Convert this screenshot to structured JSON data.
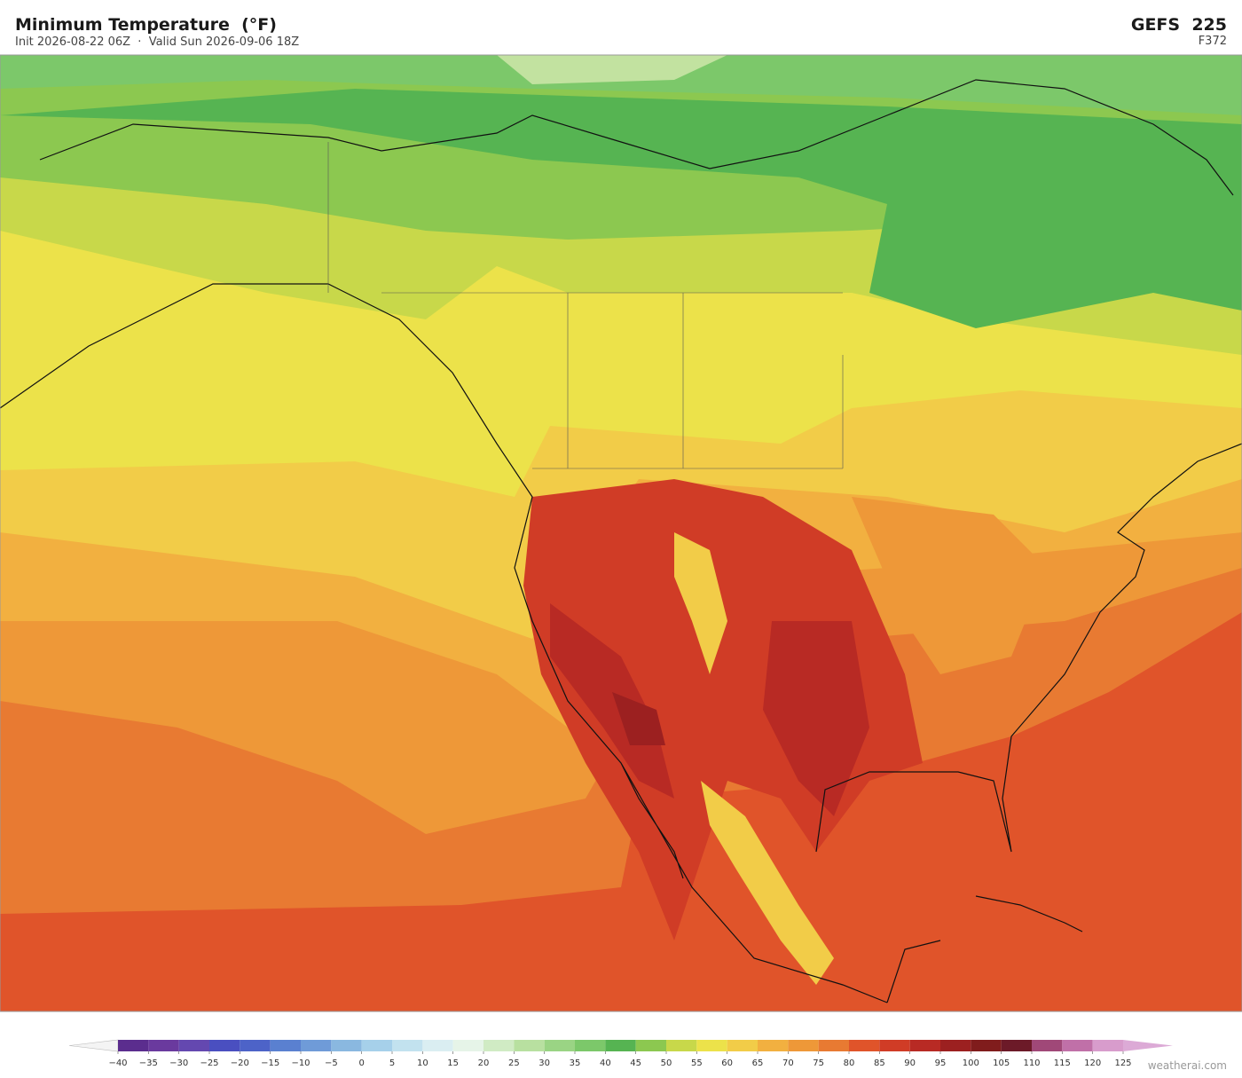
{
  "header": {
    "title": "Minimum Temperature  (°F)",
    "subtitle": "Init 2026-08-22 06Z  ·  Valid Sun 2026-09-06 18Z",
    "model": "GEFS  225",
    "forecast_hour": "F372"
  },
  "colorbar": {
    "ticks": [
      {
        "value": -40,
        "label": "−40"
      },
      {
        "value": -35,
        "label": "−35"
      },
      {
        "value": -30,
        "label": "−30"
      },
      {
        "value": -25,
        "label": "−25"
      },
      {
        "value": -20,
        "label": "−20"
      },
      {
        "value": -15,
        "label": "−15"
      },
      {
        "value": -10,
        "label": "−10"
      },
      {
        "value": -5,
        "label": "−5"
      },
      0,
      5,
      10,
      15,
      20,
      25,
      30,
      35,
      40,
      45,
      50,
      55,
      60,
      65,
      70,
      75,
      80,
      85,
      90,
      95,
      100,
      105,
      110,
      115,
      120,
      125
    ],
    "colors": [
      "#5b2d8e",
      "#6a3a9e",
      "#6448b0",
      "#4a4fc0",
      "#4d63c8",
      "#5a80d0",
      "#6f9bd8",
      "#8ab8e0",
      "#a6d0ea",
      "#c2e2ef",
      "#daeef2",
      "#e6f4e8",
      "#d0ebc4",
      "#b8e0a0",
      "#9ad484",
      "#7cc86a",
      "#56b452",
      "#8cc850",
      "#c8d84a",
      "#ece24a",
      "#f2cc48",
      "#f2b040",
      "#ee9838",
      "#e87a32",
      "#e0542a",
      "#d03c26",
      "#b82a24",
      "#9c2020",
      "#801c1c",
      "#6c1a28",
      "#a04878",
      "#c070a8",
      "#d89ccc"
    ],
    "under_color": "#f4f4f4",
    "over_color": "#dcaad6"
  },
  "footer": {
    "watermark": "weatherai.com"
  }
}
